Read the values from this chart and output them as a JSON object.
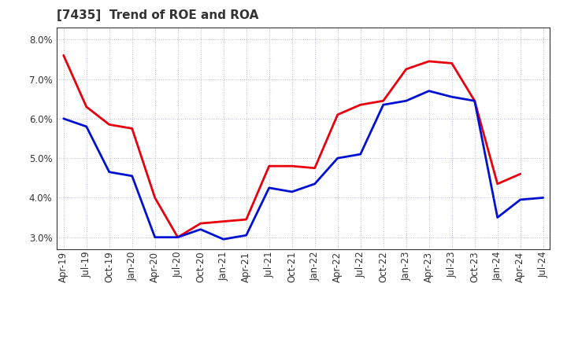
{
  "title": "[7435]  Trend of ROE and ROA",
  "x_labels": [
    "Apr-19",
    "Jul-19",
    "Oct-19",
    "Jan-20",
    "Apr-20",
    "Jul-20",
    "Oct-20",
    "Jan-21",
    "Apr-21",
    "Jul-21",
    "Oct-21",
    "Jan-22",
    "Apr-22",
    "Jul-22",
    "Oct-22",
    "Jan-23",
    "Apr-23",
    "Jul-23",
    "Oct-23",
    "Jan-24",
    "Apr-24",
    "Jul-24"
  ],
  "roe": [
    7.6,
    6.3,
    5.85,
    5.75,
    4.0,
    3.0,
    3.35,
    3.4,
    3.45,
    4.8,
    4.8,
    4.75,
    6.1,
    6.35,
    6.45,
    7.25,
    7.45,
    7.4,
    6.45,
    4.35,
    4.6,
    null
  ],
  "roa": [
    6.0,
    5.8,
    4.65,
    4.55,
    3.0,
    3.0,
    3.2,
    2.95,
    3.05,
    4.25,
    4.15,
    4.35,
    5.0,
    5.1,
    6.35,
    6.45,
    6.7,
    6.55,
    6.45,
    3.5,
    3.95,
    4.0
  ],
  "roe_color": "#e8000d",
  "roa_color": "#0010d4",
  "ylim": [
    2.7,
    8.3
  ],
  "yticks": [
    3.0,
    4.0,
    5.0,
    6.0,
    7.0,
    8.0
  ],
  "background_color": "#ffffff",
  "grid_color": "#9999bb",
  "title_fontsize": 11,
  "title_color": "#333333",
  "legend_fontsize": 10,
  "linewidth": 2.0,
  "tick_fontsize": 8.5
}
